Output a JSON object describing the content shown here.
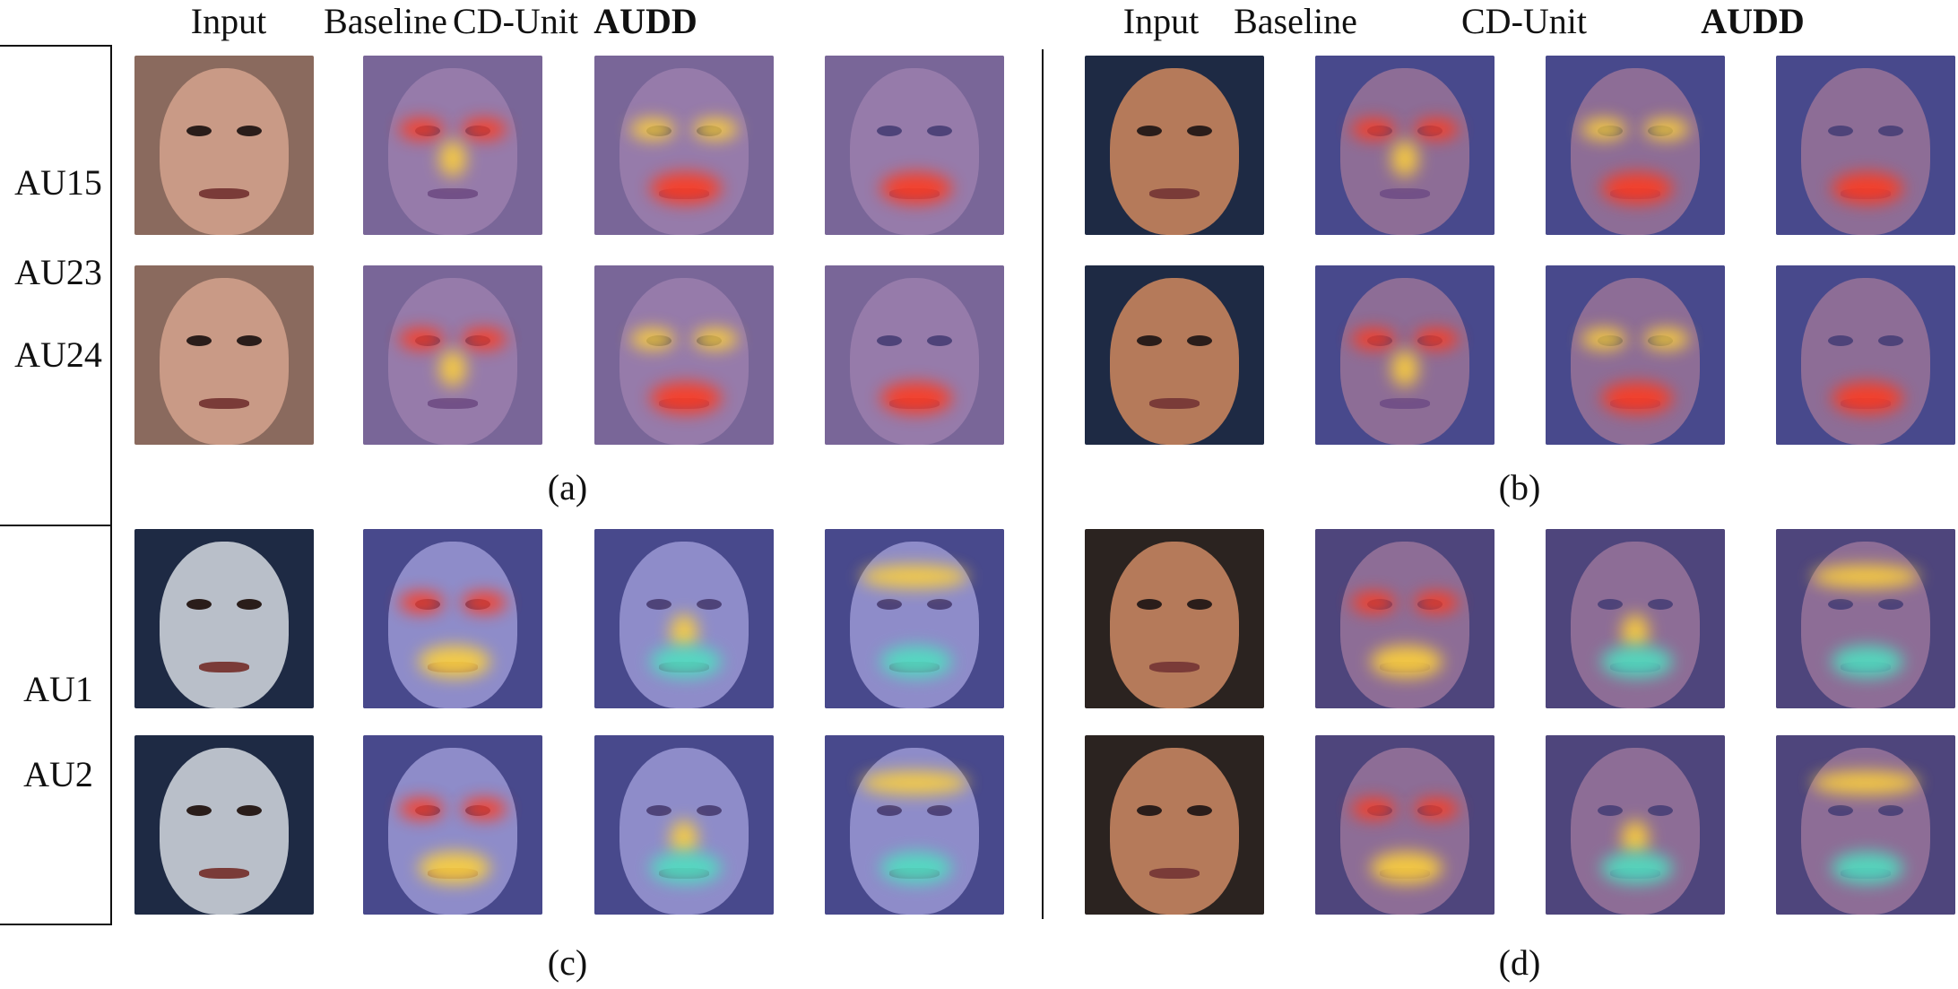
{
  "columns_left": [
    "Input",
    "Baseline",
    "CD-Unit",
    "AUDD"
  ],
  "columns_right": [
    "Input",
    "Baseline",
    "CD-Unit",
    "AUDD"
  ],
  "row_labels": {
    "top": [
      "AU15",
      "AU23",
      "AU24"
    ],
    "bottom": [
      "AU1",
      "AU2"
    ]
  },
  "captions": {
    "a": "(a)",
    "b": "(b)",
    "c": "(c)",
    "d": "(d)"
  },
  "colors": {
    "skin_light": "#c99a86",
    "skin_tan": "#b57a5a",
    "skin_pale": "#b9bfc9",
    "bg_dark": "#1e2a44",
    "heat_overlay": "#6b62c9",
    "heat_jet_bg": "#2d3f9e",
    "hot": "#ff3b1f",
    "warm": "#ffd23a",
    "cool": "#4fe0c0"
  }
}
